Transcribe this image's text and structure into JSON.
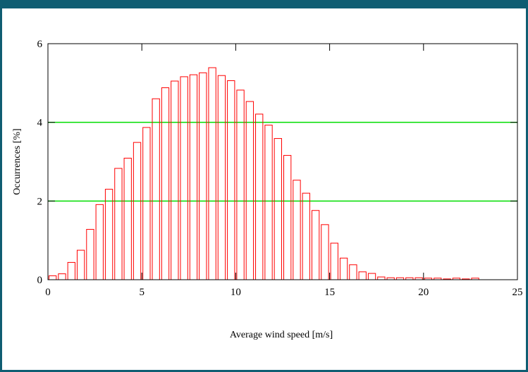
{
  "chart_data": {
    "type": "bar",
    "xlabel": "Average wind speed [m/s]",
    "ylabel": "Occurrences [%]",
    "xlim": [
      0,
      25
    ],
    "ylim": [
      0,
      6
    ],
    "x_ticks": [
      "0",
      "5",
      "10",
      "15",
      "20",
      "25"
    ],
    "y_ticks": [
      "0",
      "2",
      "4",
      "6"
    ],
    "grid_lines_y": [
      2,
      4
    ],
    "colors": {
      "bars": "#ff0000",
      "grid": "#00dd00",
      "frame": "#0f5d72"
    },
    "bin_width": 0.5,
    "x": [
      0,
      0.5,
      1,
      1.5,
      2,
      2.5,
      3,
      3.5,
      4,
      4.5,
      5,
      5.5,
      6,
      6.5,
      7,
      7.5,
      8,
      8.5,
      9,
      9.5,
      10,
      10.5,
      11,
      11.5,
      12,
      12.5,
      13,
      13.5,
      14,
      14.5,
      15,
      15.5,
      16,
      16.5,
      17,
      17.5,
      18,
      18.5,
      19,
      19.5,
      20,
      20.5,
      21,
      21.5,
      22,
      22.5
    ],
    "values": [
      0.1,
      0.15,
      0.44,
      0.75,
      1.28,
      1.91,
      2.3,
      2.83,
      3.09,
      3.49,
      3.87,
      4.6,
      4.88,
      5.05,
      5.16,
      5.21,
      5.26,
      5.39,
      5.19,
      5.06,
      4.82,
      4.53,
      4.21,
      3.93,
      3.59,
      3.16,
      2.53,
      2.2,
      1.76,
      1.4,
      0.93,
      0.55,
      0.38,
      0.2,
      0.16,
      0.07,
      0.05,
      0.05,
      0.05,
      0.05,
      0.04,
      0.04,
      0.02,
      0.04,
      0.02,
      0.04
    ]
  }
}
